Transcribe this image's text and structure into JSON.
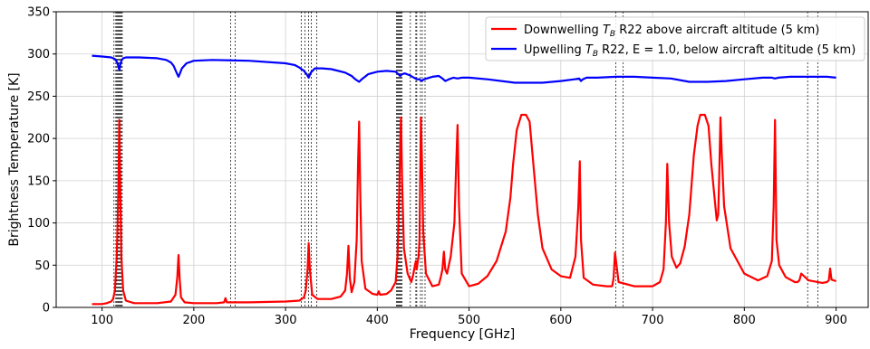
{
  "chart_data": {
    "type": "line",
    "title": "",
    "xlabel": "Frequency [GHz]",
    "ylabel": "Brightness Temperature [K]",
    "xlim": [
      50,
      935
    ],
    "ylim": [
      0,
      350
    ],
    "xticks": [
      100,
      200,
      300,
      400,
      500,
      600,
      700,
      800,
      900
    ],
    "yticks": [
      0,
      50,
      100,
      150,
      200,
      250,
      300,
      350
    ],
    "grid": true,
    "legend_position": "top-right",
    "vlines": [
      113,
      115,
      116,
      117,
      118,
      119,
      120,
      121,
      122,
      240,
      245,
      317,
      321,
      325,
      328,
      334,
      421,
      422,
      423,
      424,
      425,
      426,
      427,
      436,
      442,
      443,
      447,
      449,
      452,
      660,
      668,
      869,
      880
    ],
    "series": [
      {
        "name": "Downwelling $T_B$ R22 above aircraft altitude (5 km)",
        "label_parts": [
          "Downwelling ",
          "T",
          "B",
          " R22 above aircraft altitude (5 km)"
        ],
        "color": "#ff0000",
        "x": [
          89,
          100,
          105,
          110,
          112,
          114,
          116,
          117,
          118,
          118.75,
          119.5,
          121,
          123,
          126,
          135,
          160,
          175,
          180,
          182,
          183.3,
          184.5,
          186,
          190,
          200,
          225,
          233,
          234.5,
          236,
          260,
          300,
          315,
          320,
          322,
          324,
          325.2,
          326.5,
          329,
          335,
          350,
          360,
          365,
          367,
          368.5,
          370,
          372,
          375,
          377.5,
          379,
          380.2,
          381.5,
          383,
          387,
          395,
          400,
          401.5,
          403,
          410,
          415,
          420,
          422,
          424,
          425,
          425.8,
          427,
          429,
          433,
          437,
          439,
          441,
          442,
          443,
          444,
          445,
          446,
          447.5,
          448.5,
          450,
          453,
          460,
          467,
          469,
          471,
          472.5,
          474,
          476,
          480,
          484,
          486,
          487.5,
          489,
          492,
          500,
          510,
          520,
          530,
          540,
          545,
          548,
          552,
          557,
          562,
          566,
          570,
          575,
          580,
          590,
          600,
          610,
          616,
          619,
          620.7,
          622,
          625,
          635,
          650,
          656,
          657.5,
          659,
          663,
          680,
          700,
          708,
          712,
          714.5,
          716,
          718,
          721,
          726,
          730,
          732,
          735,
          740,
          745,
          749,
          752,
          757,
          761,
          764,
          768,
          770,
          771.5,
          772.5,
          774,
          775.5,
          778,
          785,
          800,
          815,
          825,
          830,
          832,
          833.5,
          835,
          838,
          845,
          855,
          858,
          860,
          862,
          870,
          885,
          890,
          892,
          893.5,
          895,
          900
        ],
        "y": [
          4,
          4,
          5,
          7,
          10,
          20,
          60,
          100,
          150,
          222,
          160,
          60,
          20,
          8,
          5,
          5,
          7,
          15,
          35,
          62,
          35,
          12,
          6,
          5,
          5,
          6,
          11,
          6,
          6,
          7,
          8,
          12,
          20,
          45,
          76,
          45,
          15,
          10,
          10,
          13,
          20,
          40,
          73,
          35,
          18,
          30,
          80,
          170,
          220,
          130,
          55,
          22,
          16,
          15,
          19,
          15,
          16,
          20,
          30,
          60,
          140,
          200,
          225,
          150,
          70,
          40,
          30,
          38,
          50,
          55,
          45,
          54,
          60,
          80,
          225,
          180,
          90,
          40,
          25,
          27,
          35,
          45,
          66,
          45,
          40,
          60,
          100,
          170,
          216,
          120,
          40,
          25,
          28,
          37,
          55,
          90,
          130,
          170,
          210,
          228,
          228,
          220,
          170,
          110,
          70,
          45,
          37,
          35,
          60,
          118,
          173,
          80,
          35,
          27,
          25,
          25,
          35,
          65,
          30,
          25,
          25,
          30,
          45,
          100,
          170,
          100,
          60,
          47,
          52,
          60,
          72,
          110,
          180,
          215,
          228,
          228,
          215,
          170,
          125,
          103,
          110,
          150,
          225,
          180,
          120,
          70,
          40,
          32,
          37,
          55,
          120,
          222,
          80,
          50,
          36,
          30,
          30,
          32,
          40,
          32,
          29,
          30,
          32,
          46,
          33,
          31
        ]
      },
      {
        "name": "Upwelling $T_B$ R22, E = 1.0, below aircraft altitude (5 km)",
        "label_parts": [
          "Upwelling ",
          "T",
          "B",
          " R22, E = 1.0, below aircraft altitude (5 km)"
        ],
        "color": "#0000ff",
        "x": [
          89,
          100,
          110,
          114,
          116,
          117,
          118,
          118.75,
          119.5,
          121,
          123,
          126,
          140,
          160,
          170,
          175,
          178,
          180,
          182,
          183.3,
          184.5,
          187,
          192,
          200,
          220,
          260,
          300,
          310,
          315,
          320,
          323,
          325.2,
          327.5,
          332,
          340,
          350,
          365,
          372,
          376,
          380.2,
          383,
          390,
          400,
          410,
          420,
          422,
          425,
          427,
          430,
          435,
          440,
          443,
          446,
          448,
          451,
          460,
          467,
          471,
          474,
          478,
          483,
          487.5,
          492,
          500,
          520,
          550,
          580,
          600,
          615,
          620,
          622,
          624,
          628,
          640,
          660,
          680,
          700,
          720,
          740,
          760,
          780,
          800,
          820,
          830,
          833.5,
          837,
          850,
          870,
          880,
          890,
          900
        ],
        "y": [
          298,
          297,
          296,
          294,
          291,
          288,
          285,
          281,
          286,
          292,
          295,
          296,
          296,
          295,
          293,
          290,
          286,
          281,
          276,
          273,
          276,
          283,
          289,
          292,
          293,
          292,
          289,
          287,
          284,
          280,
          276,
          272,
          278,
          283,
          283,
          282,
          278,
          274,
          270,
          267,
          270,
          276,
          279,
          280,
          279,
          277,
          274,
          276,
          277,
          275,
          272,
          270,
          270,
          268,
          270,
          273,
          274,
          271,
          268,
          270,
          272,
          271,
          272,
          272,
          270,
          266,
          266,
          268,
          270,
          271,
          268,
          270,
          272,
          272,
          273,
          273,
          272,
          271,
          267,
          267,
          268,
          270,
          272,
          272,
          271,
          272,
          273,
          273,
          273,
          273,
          272
        ]
      }
    ]
  }
}
